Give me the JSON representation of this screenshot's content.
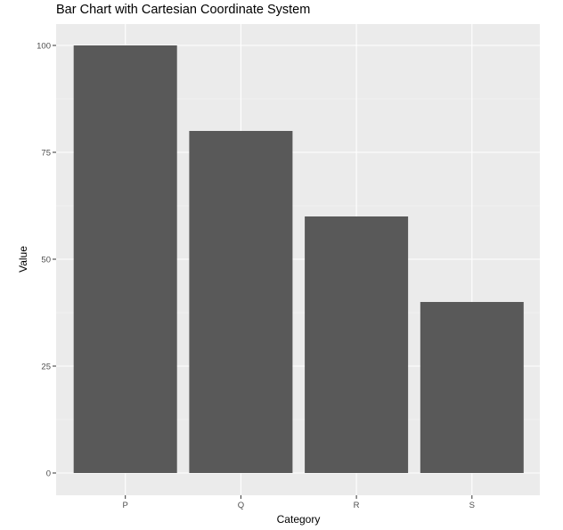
{
  "chart_data": {
    "type": "bar",
    "title": "Bar Chart with Cartesian Coordinate System",
    "xlabel": "Category",
    "ylabel": "Value",
    "categories": [
      "P",
      "Q",
      "R",
      "S"
    ],
    "values": [
      100,
      80,
      60,
      40
    ],
    "ylim": [
      0,
      100
    ],
    "yticks": [
      0,
      25,
      50,
      75,
      100
    ],
    "grid": true,
    "legend": "none",
    "colors": {
      "bar": "#595959",
      "panel_background": "#ebebeb",
      "grid_major": "#ffffff",
      "grid_minor": "#f5f5f5",
      "tick_label": "#4d4d4d"
    }
  }
}
